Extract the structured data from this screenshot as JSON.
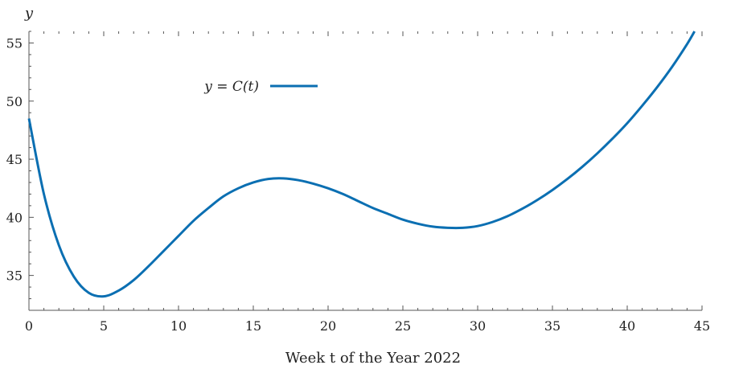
{
  "chart_data": {
    "type": "line",
    "title": "",
    "xlabel": "Week t of the Year 2022",
    "ylabel": "y",
    "xlim": [
      0,
      45
    ],
    "ylim": [
      32,
      56
    ],
    "xticks": [
      0,
      5,
      10,
      15,
      20,
      25,
      30,
      35,
      40,
      45
    ],
    "yticks": [
      35,
      40,
      45,
      50,
      55
    ],
    "grid": false,
    "legend_position": "top-left",
    "series": [
      {
        "name": "y = C(t)",
        "color": "#0b6fb2",
        "x": [
          0,
          1,
          2,
          3,
          4,
          5,
          6,
          7,
          8,
          9,
          10,
          11,
          12,
          13,
          14,
          15,
          16,
          17,
          18,
          19,
          20,
          21,
          22,
          23,
          24,
          25,
          26,
          27,
          28,
          29,
          30,
          31,
          32,
          33,
          34,
          35,
          36,
          37,
          38,
          39,
          40,
          41,
          42,
          43,
          44,
          44.5
        ],
        "y": [
          48.5,
          42.0,
          37.6,
          34.9,
          33.5,
          33.2,
          33.7,
          34.6,
          35.8,
          37.1,
          38.4,
          39.7,
          40.8,
          41.8,
          42.5,
          43.0,
          43.3,
          43.35,
          43.2,
          42.9,
          42.5,
          42.0,
          41.4,
          40.8,
          40.3,
          39.8,
          39.45,
          39.2,
          39.1,
          39.1,
          39.25,
          39.6,
          40.1,
          40.75,
          41.5,
          42.35,
          43.3,
          44.35,
          45.5,
          46.75,
          48.1,
          49.6,
          51.2,
          52.95,
          54.9,
          56.0
        ]
      }
    ]
  }
}
